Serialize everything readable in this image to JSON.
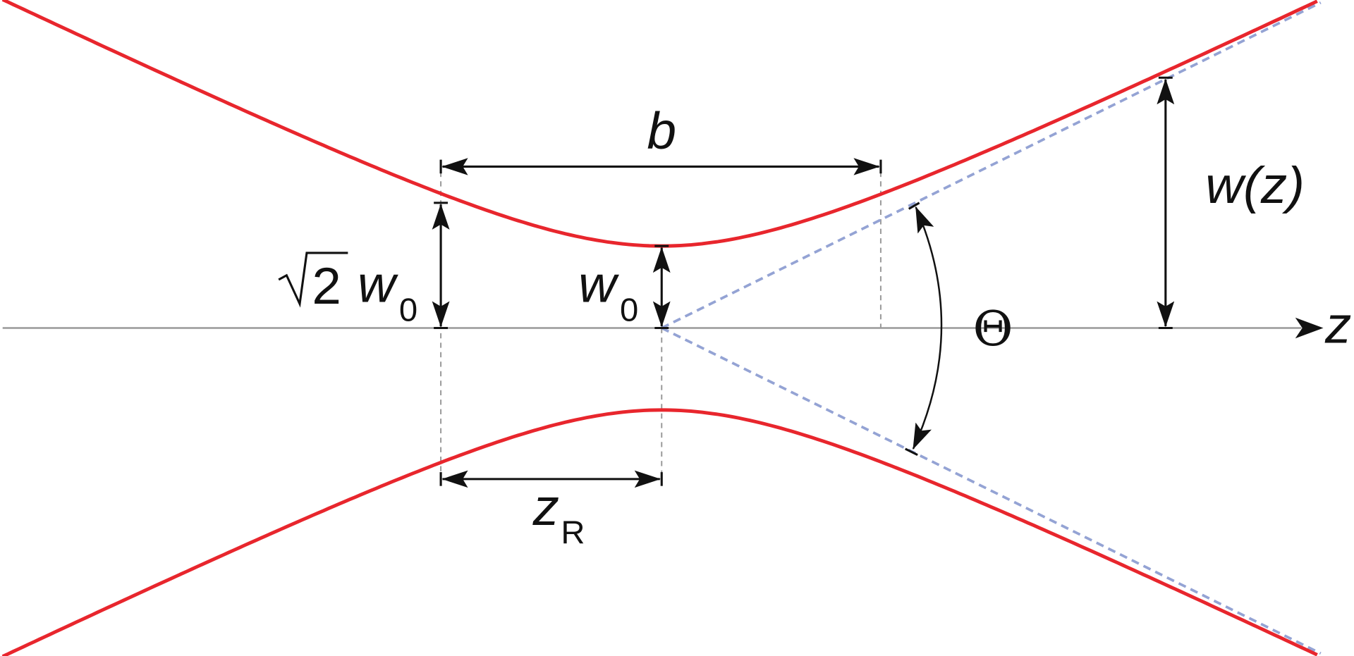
{
  "labels": {
    "b": "b",
    "w_z": "w(z)",
    "sqrt2_w0": {
      "radicand": "2",
      "symbol": "w",
      "subscript": "0"
    },
    "w0": {
      "symbol": "w",
      "subscript": "0"
    },
    "theta": "Θ",
    "z_axis": "z",
    "z_R": {
      "symbol": "z",
      "subscript": "R"
    }
  }
}
